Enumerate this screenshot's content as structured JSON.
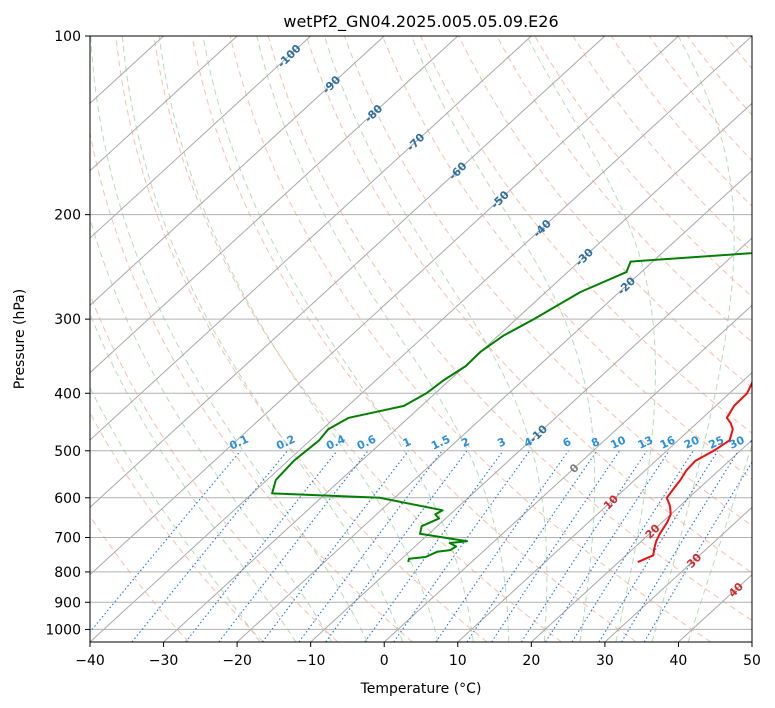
{
  "chart_data": {
    "type": "line",
    "title": "wetPf2_GN04.2025.005.05.09.E26",
    "xlabel": "Temperature (°C)",
    "ylabel": "Pressure (hPa)",
    "xlim": [
      -40,
      50
    ],
    "ylim": [
      1050,
      100
    ],
    "yscale": "log",
    "grid": true,
    "xticks": [
      -40,
      -30,
      -20,
      -10,
      0,
      10,
      20,
      30,
      40,
      50
    ],
    "yticks": [
      100,
      200,
      300,
      400,
      500,
      600,
      700,
      800,
      900,
      1000
    ],
    "series": [
      {
        "role": "temperature",
        "color": "#ee1111",
        "points": [
          [
            22.6,
            770
          ],
          [
            23.7,
            750
          ],
          [
            22.8,
            730
          ],
          [
            22.0,
            710
          ],
          [
            21.4,
            690
          ],
          [
            20.7,
            660
          ],
          [
            20.0,
            640
          ],
          [
            18.7,
            620
          ],
          [
            17.0,
            600
          ],
          [
            16.6,
            580
          ],
          [
            16.2,
            560
          ],
          [
            15.6,
            540
          ],
          [
            15.4,
            520
          ],
          [
            16.4,
            500
          ],
          [
            17.0,
            480
          ],
          [
            15.8,
            460
          ],
          [
            14.7,
            450
          ],
          [
            13.3,
            440
          ],
          [
            12.5,
            420
          ],
          [
            12.4,
            400
          ],
          [
            9.5,
            350
          ],
          [
            6.7,
            300
          ],
          [
            2.6,
            250
          ],
          [
            -0.6,
            200
          ],
          [
            2.6,
            180
          ],
          [
            6.0,
            160
          ],
          [
            10.0,
            140
          ],
          [
            13.3,
            130
          ],
          [
            14.7,
            120
          ],
          [
            14.7,
            110
          ],
          [
            14.7,
            100
          ]
        ]
      },
      {
        "role": "dewpoint",
        "color": "#008000",
        "points": [
          [
            -8.6,
            770
          ],
          [
            -9.0,
            760
          ],
          [
            -7.0,
            755
          ],
          [
            -6.2,
            740
          ],
          [
            -4.7,
            735
          ],
          [
            -4.4,
            725
          ],
          [
            -5.8,
            715
          ],
          [
            -3.7,
            710
          ],
          [
            -11.2,
            690
          ],
          [
            -12.1,
            670
          ],
          [
            -10.9,
            650
          ],
          [
            -12.0,
            640
          ],
          [
            -11.6,
            630
          ],
          [
            -22.0,
            600
          ],
          [
            -37.3,
            590
          ],
          [
            -38.8,
            560
          ],
          [
            -39.2,
            520
          ],
          [
            -38.8,
            480
          ],
          [
            -39.2,
            460
          ],
          [
            -38.1,
            440
          ],
          [
            -32.4,
            420
          ],
          [
            -31.2,
            400
          ],
          [
            -30.8,
            380
          ],
          [
            -29.9,
            360
          ],
          [
            -30.0,
            340
          ],
          [
            -29.3,
            320
          ],
          [
            -27.6,
            300
          ],
          [
            -25.3,
            270
          ],
          [
            -22.0,
            250
          ],
          [
            -23.0,
            240
          ],
          [
            -3.4,
            230
          ],
          [
            -1.0,
            200
          ],
          [
            -0.5,
            180
          ],
          [
            -6.0,
            160
          ],
          [
            -12.0,
            150
          ],
          [
            -6.0,
            140
          ],
          [
            -10.5,
            130
          ],
          [
            -12.6,
            125
          ],
          [
            -19.0,
            120
          ],
          [
            -19.0,
            115
          ],
          [
            -17.2,
            105
          ],
          [
            -4.2,
            100
          ]
        ]
      }
    ],
    "mixing_ratio_labels": [
      "0.1",
      "0.2",
      "0.4",
      "0.6",
      "1",
      "1.5",
      "2",
      "3",
      "4",
      "6",
      "8",
      "10",
      "13",
      "16",
      "20",
      "25",
      "30",
      "36"
    ],
    "temperature_labels": [
      "-100",
      "-90",
      "-80",
      "-70",
      "-60",
      "-50",
      "-40",
      "-30",
      "-20",
      "-10",
      "0",
      "10",
      "20",
      "30",
      "40"
    ]
  }
}
